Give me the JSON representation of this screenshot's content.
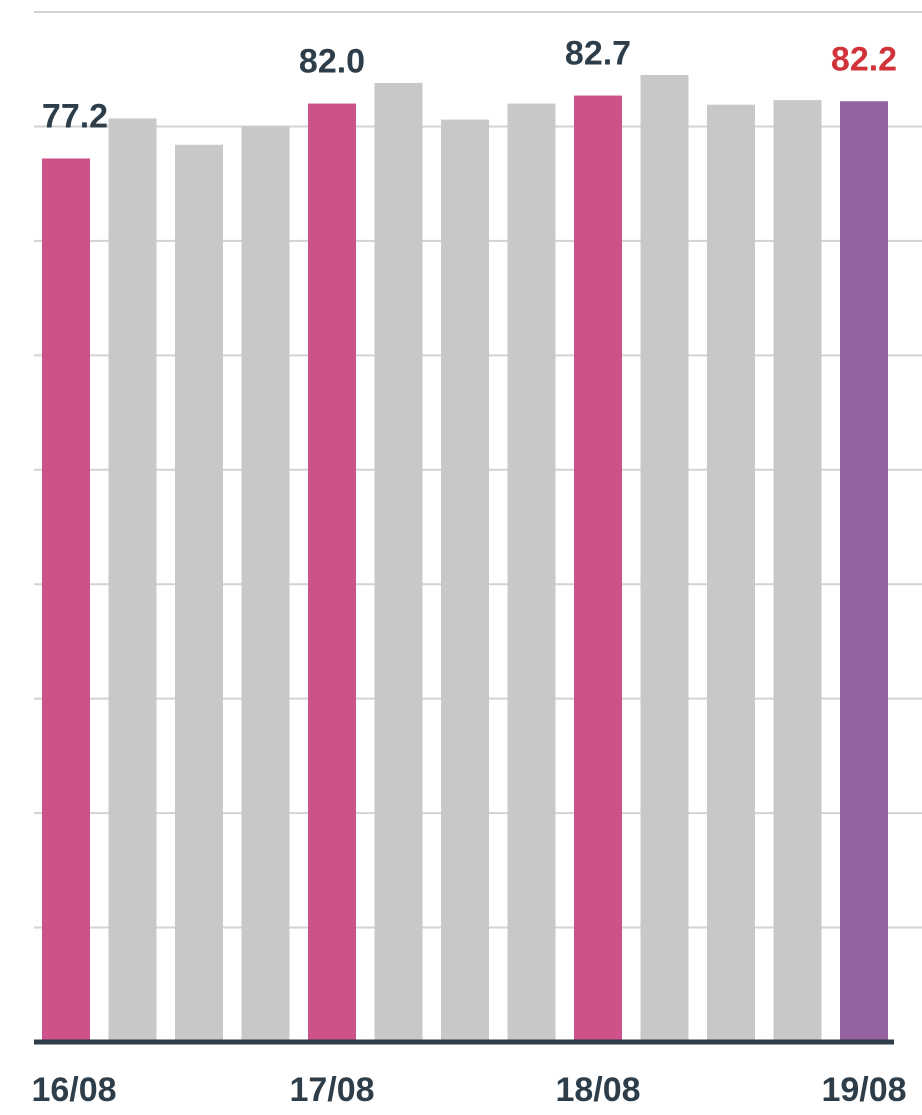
{
  "chart_data": {
    "type": "bar",
    "categories": [
      "16/08",
      null,
      null,
      null,
      "17/08",
      null,
      null,
      null,
      "18/08",
      null,
      null,
      null,
      "19/08"
    ],
    "values": [
      77.2,
      80.7,
      78.4,
      80.0,
      82.0,
      83.8,
      80.6,
      82.0,
      82.7,
      84.5,
      81.9,
      82.3,
      82.2
    ],
    "value_labels": [
      "77.2",
      null,
      null,
      null,
      "82.0",
      null,
      null,
      null,
      "82.7",
      null,
      null,
      null,
      "82.2"
    ],
    "colors": [
      "#cc5289",
      "#c8c8c8",
      "#c8c8c8",
      "#c8c8c8",
      "#cc5289",
      "#c8c8c8",
      "#c8c8c8",
      "#c8c8c8",
      "#cc5289",
      "#c8c8c8",
      "#c8c8c8",
      "#c8c8c8",
      "#9462a0"
    ],
    "value_label_colors": [
      "#2d3e4a",
      null,
      null,
      null,
      "#2d3e4a",
      null,
      null,
      null,
      "#2d3e4a",
      null,
      null,
      null,
      "#d0343a"
    ],
    "ylim": [
      0,
      90
    ],
    "yticks": [
      0,
      10,
      20,
      30,
      40,
      50,
      60,
      70,
      80,
      90
    ],
    "grid": true
  }
}
